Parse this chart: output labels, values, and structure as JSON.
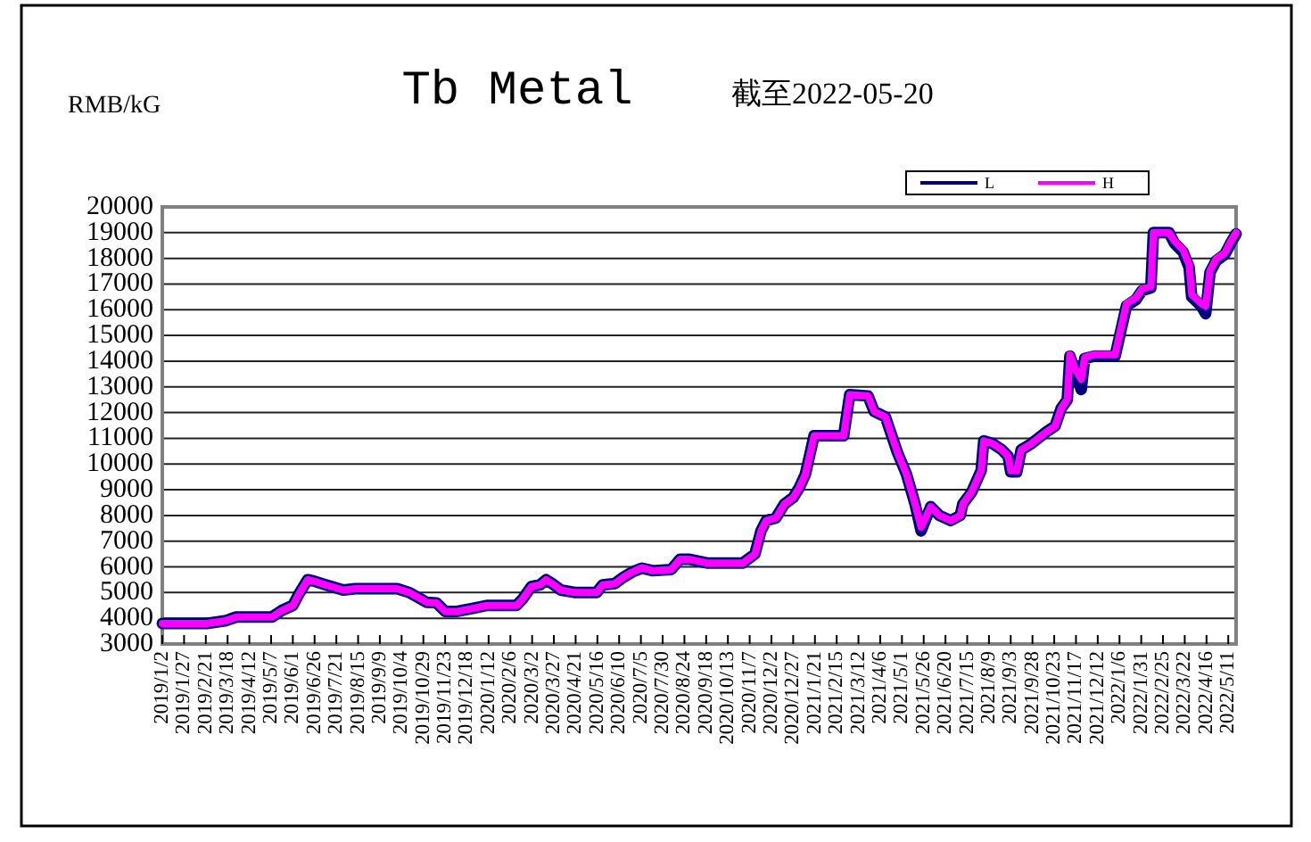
{
  "chart_data": {
    "type": "line",
    "title": "Tb Metal",
    "subtitle": "截至2022-05-20",
    "ylabel": "RMB/kG",
    "x": [
      "2019-01-02",
      "2019-01-23",
      "2019-02-22",
      "2019-03-15",
      "2019-03-28",
      "2019-05-08",
      "2019-05-19",
      "2019-06-01",
      "2019-06-08",
      "2019-06-18",
      "2019-06-25",
      "2019-07-09",
      "2019-07-29",
      "2019-08-12",
      "2019-09-29",
      "2019-10-13",
      "2019-11-02",
      "2019-11-13",
      "2019-11-23",
      "2019-12-07",
      "2019-12-27",
      "2020-01-10",
      "2020-02-13",
      "2020-02-20",
      "2020-03-01",
      "2020-03-11",
      "2020-03-18",
      "2020-03-25",
      "2020-04-04",
      "2020-04-21",
      "2020-05-15",
      "2020-05-22",
      "2020-06-05",
      "2020-06-15",
      "2020-06-25",
      "2020-07-06",
      "2020-07-19",
      "2020-08-09",
      "2020-08-19",
      "2020-08-29",
      "2020-09-19",
      "2020-10-30",
      "2020-11-13",
      "2020-11-20",
      "2020-11-26",
      "2020-12-07",
      "2020-12-17",
      "2020-12-27",
      "2021-01-03",
      "2021-01-10",
      "2021-01-20",
      "2021-02-23",
      "2021-03-02",
      "2021-03-23",
      "2021-03-30",
      "2021-04-12",
      "2021-04-19",
      "2021-04-26",
      "2021-05-06",
      "2021-05-16",
      "2021-05-23",
      "2021-06-03",
      "2021-06-13",
      "2021-06-26",
      "2021-07-07",
      "2021-07-10",
      "2021-07-20",
      "2021-07-31",
      "2021-08-03",
      "2021-08-13",
      "2021-08-24",
      "2021-08-31",
      "2021-09-03",
      "2021-09-10",
      "2021-09-15",
      "2021-09-27",
      "2021-10-14",
      "2021-10-24",
      "2021-10-31",
      "2021-11-07",
      "2021-11-10",
      "2021-11-16",
      "2021-11-23",
      "2021-11-27",
      "2021-12-08",
      "2022-01-01",
      "2022-01-07",
      "2022-01-14",
      "2022-01-25",
      "2022-02-01",
      "2022-02-11",
      "2022-02-14",
      "2022-03-04",
      "2022-03-10",
      "2022-03-20",
      "2022-03-27",
      "2022-03-30",
      "2022-04-10",
      "2022-04-15",
      "2022-04-20",
      "2022-04-27",
      "2022-05-07",
      "2022-05-14",
      "2022-05-20"
    ],
    "series": [
      {
        "name": "L",
        "color": "#000080",
        "values": [
          3800,
          3800,
          3800,
          3900,
          4050,
          4050,
          4300,
          4500,
          4950,
          5500,
          5450,
          5300,
          5100,
          5150,
          5150,
          5000,
          4620,
          4600,
          4270,
          4270,
          4400,
          4500,
          4500,
          4750,
          5230,
          5300,
          5500,
          5350,
          5100,
          5000,
          5000,
          5300,
          5350,
          5600,
          5800,
          5950,
          5850,
          5900,
          6300,
          6300,
          6150,
          6150,
          6500,
          7400,
          7800,
          7900,
          8450,
          8700,
          9080,
          9600,
          11100,
          11100,
          12700,
          12650,
          12050,
          11830,
          11130,
          10430,
          9620,
          8450,
          7400,
          8340,
          8000,
          7800,
          8000,
          8450,
          8900,
          9740,
          10900,
          10800,
          10550,
          10300,
          9700,
          9700,
          10550,
          10800,
          11250,
          11480,
          12170,
          12500,
          14200,
          13600,
          12900,
          14100,
          14200,
          14200,
          15100,
          16150,
          16400,
          16750,
          16850,
          19000,
          19000,
          18600,
          18250,
          17650,
          16500,
          16150,
          15850,
          17450,
          17900,
          18150,
          18600,
          18950
        ]
      },
      {
        "name": "H",
        "color": "#ff00ff",
        "values": [
          3800,
          3800,
          3800,
          3900,
          4050,
          4050,
          4300,
          4500,
          4950,
          5500,
          5450,
          5300,
          5100,
          5150,
          5150,
          5000,
          4620,
          4600,
          4270,
          4270,
          4400,
          4500,
          4500,
          4750,
          5230,
          5300,
          5500,
          5350,
          5100,
          5000,
          5000,
          5300,
          5350,
          5600,
          5800,
          5970,
          5850,
          5900,
          6300,
          6300,
          6150,
          6150,
          6500,
          7400,
          7800,
          7900,
          8450,
          8700,
          9080,
          9600,
          11100,
          11100,
          12700,
          12650,
          12050,
          11830,
          11130,
          10430,
          9620,
          8450,
          7550,
          8340,
          8000,
          7800,
          8000,
          8450,
          8920,
          9740,
          10900,
          10800,
          10550,
          10300,
          9750,
          9750,
          10550,
          10800,
          11250,
          11480,
          12170,
          12520,
          14260,
          13700,
          13300,
          14150,
          14260,
          14260,
          15190,
          16240,
          16470,
          16820,
          16900,
          19000,
          19000,
          18680,
          18330,
          17750,
          16590,
          16240,
          16150,
          17520,
          17980,
          18210,
          18680,
          19000
        ]
      }
    ],
    "xlim": [
      "2019-01-02",
      "2022-05-20"
    ],
    "ylim": [
      3000,
      20000
    ],
    "yticks": [
      3000,
      4000,
      5000,
      6000,
      7000,
      8000,
      9000,
      10000,
      11000,
      12000,
      13000,
      14000,
      15000,
      16000,
      17000,
      18000,
      19000,
      20000
    ],
    "xticks": [
      {
        "value": "2019-01-02",
        "label": "2019/1/2"
      },
      {
        "value": "2019-01-27",
        "label": "2019/1/27"
      },
      {
        "value": "2019-02-21",
        "label": "2019/2/21"
      },
      {
        "value": "2019-03-18",
        "label": "2019/3/18"
      },
      {
        "value": "2019-04-12",
        "label": "2019/4/12"
      },
      {
        "value": "2019-05-07",
        "label": "2019/5/7"
      },
      {
        "value": "2019-06-01",
        "label": "2019/6/1"
      },
      {
        "value": "2019-06-26",
        "label": "2019/6/26"
      },
      {
        "value": "2019-07-21",
        "label": "2019/7/21"
      },
      {
        "value": "2019-08-15",
        "label": "2019/8/15"
      },
      {
        "value": "2019-09-09",
        "label": "2019/9/9"
      },
      {
        "value": "2019-10-04",
        "label": "2019/10/4"
      },
      {
        "value": "2019-10-29",
        "label": "2019/10/29"
      },
      {
        "value": "2019-11-23",
        "label": "2019/11/23"
      },
      {
        "value": "2019-12-18",
        "label": "2019/12/18"
      },
      {
        "value": "2020-01-12",
        "label": "2020/1/12"
      },
      {
        "value": "2020-02-06",
        "label": "2020/2/6"
      },
      {
        "value": "2020-03-02",
        "label": "2020/3/2"
      },
      {
        "value": "2020-03-27",
        "label": "2020/3/27"
      },
      {
        "value": "2020-04-21",
        "label": "2020/4/21"
      },
      {
        "value": "2020-05-16",
        "label": "2020/5/16"
      },
      {
        "value": "2020-06-10",
        "label": "2020/6/10"
      },
      {
        "value": "2020-07-05",
        "label": "2020/7/5"
      },
      {
        "value": "2020-07-30",
        "label": "2020/7/30"
      },
      {
        "value": "2020-08-24",
        "label": "2020/8/24"
      },
      {
        "value": "2020-09-18",
        "label": "2020/9/18"
      },
      {
        "value": "2020-10-13",
        "label": "2020/10/13"
      },
      {
        "value": "2020-11-07",
        "label": "2020/11/7"
      },
      {
        "value": "2020-12-02",
        "label": "2020/12/2"
      },
      {
        "value": "2020-12-27",
        "label": "2020/12/27"
      },
      {
        "value": "2021-01-21",
        "label": "2021/1/21"
      },
      {
        "value": "2021-02-15",
        "label": "2021/2/15"
      },
      {
        "value": "2021-03-12",
        "label": "2021/3/12"
      },
      {
        "value": "2021-04-06",
        "label": "2021/4/6"
      },
      {
        "value": "2021-05-01",
        "label": "2021/5/1"
      },
      {
        "value": "2021-05-26",
        "label": "2021/5/26"
      },
      {
        "value": "2021-06-20",
        "label": "2021/6/20"
      },
      {
        "value": "2021-07-15",
        "label": "2021/7/15"
      },
      {
        "value": "2021-08-09",
        "label": "2021/8/9"
      },
      {
        "value": "2021-09-03",
        "label": "2021/9/3"
      },
      {
        "value": "2021-09-28",
        "label": "2021/9/28"
      },
      {
        "value": "2021-10-23",
        "label": "2021/10/23"
      },
      {
        "value": "2021-11-17",
        "label": "2021/11/17"
      },
      {
        "value": "2021-12-12",
        "label": "2021/12/12"
      },
      {
        "value": "2022-01-06",
        "label": "2022/1/6"
      },
      {
        "value": "2022-01-31",
        "label": "2022/1/31"
      },
      {
        "value": "2022-02-25",
        "label": "2022/2/25"
      },
      {
        "value": "2022-03-22",
        "label": "2022/3/22"
      },
      {
        "value": "2022-04-16",
        "label": "2022/4/16"
      },
      {
        "value": "2022-05-11",
        "label": "2022/5/11"
      }
    ],
    "grid": "y",
    "legend": "top right",
    "line_style": "solid"
  }
}
